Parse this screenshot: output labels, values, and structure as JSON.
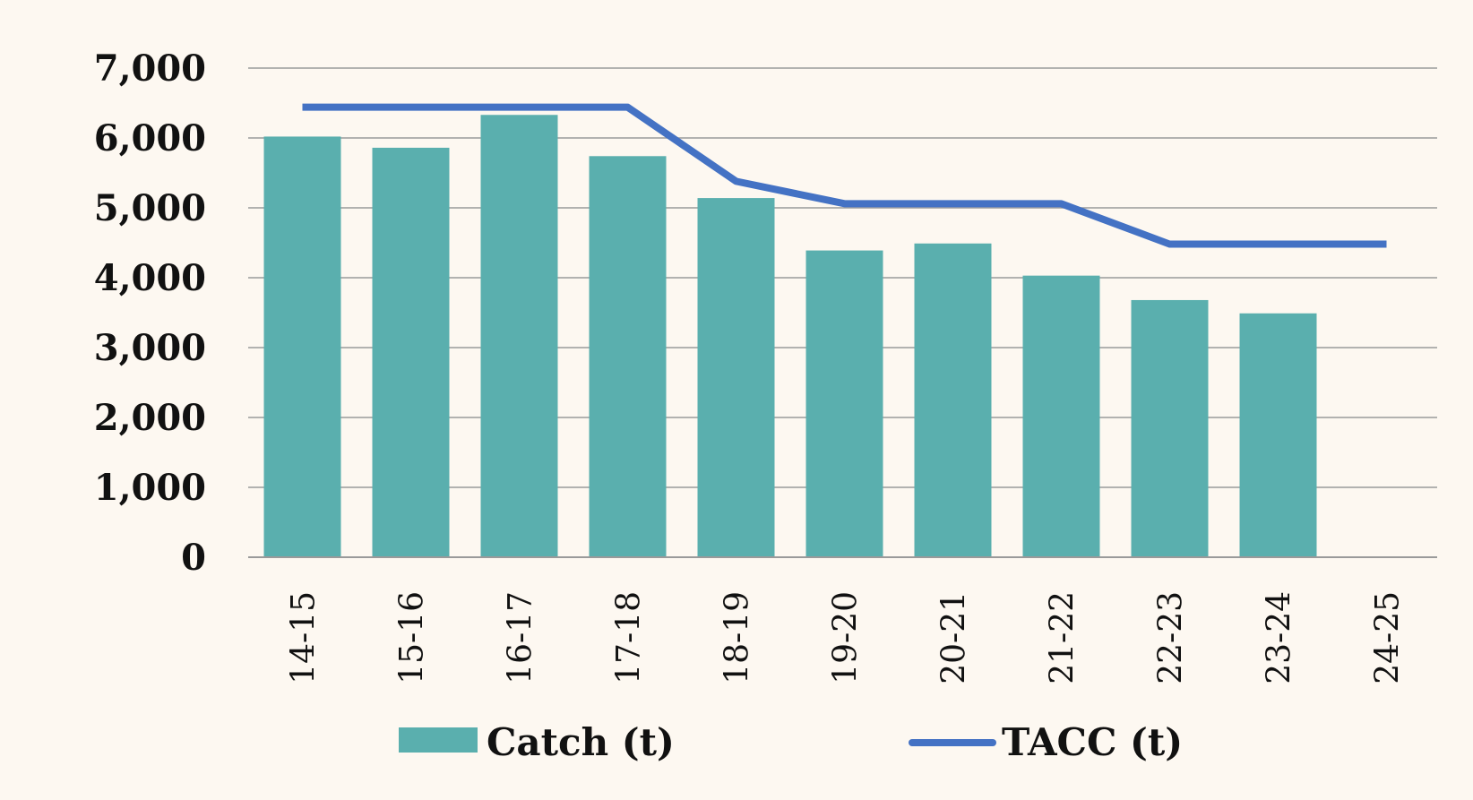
{
  "chart_data": {
    "type": "bar",
    "categories": [
      "14-15",
      "15-16",
      "16-17",
      "17-18",
      "18-19",
      "19-20",
      "20-21",
      "21-22",
      "22-23",
      "23-24",
      "24-25"
    ],
    "series": [
      {
        "name": "Catch (t)",
        "type": "bar",
        "color": "#5aafae",
        "values": [
          6020,
          5860,
          6330,
          5740,
          5140,
          4390,
          4490,
          4030,
          3680,
          3490,
          null
        ]
      },
      {
        "name": "TACC (t)",
        "type": "line",
        "color": "#4472c4",
        "values": [
          6440,
          6440,
          6440,
          6440,
          5380,
          5060,
          5060,
          5060,
          4480,
          4480,
          4480
        ]
      }
    ],
    "y_ticks": [
      "0",
      "1,000",
      "2,000",
      "3,000",
      "4,000",
      "5,000",
      "6,000",
      "7,000"
    ],
    "ylim": [
      0,
      7000
    ],
    "grid": true,
    "legend": "bottom"
  }
}
